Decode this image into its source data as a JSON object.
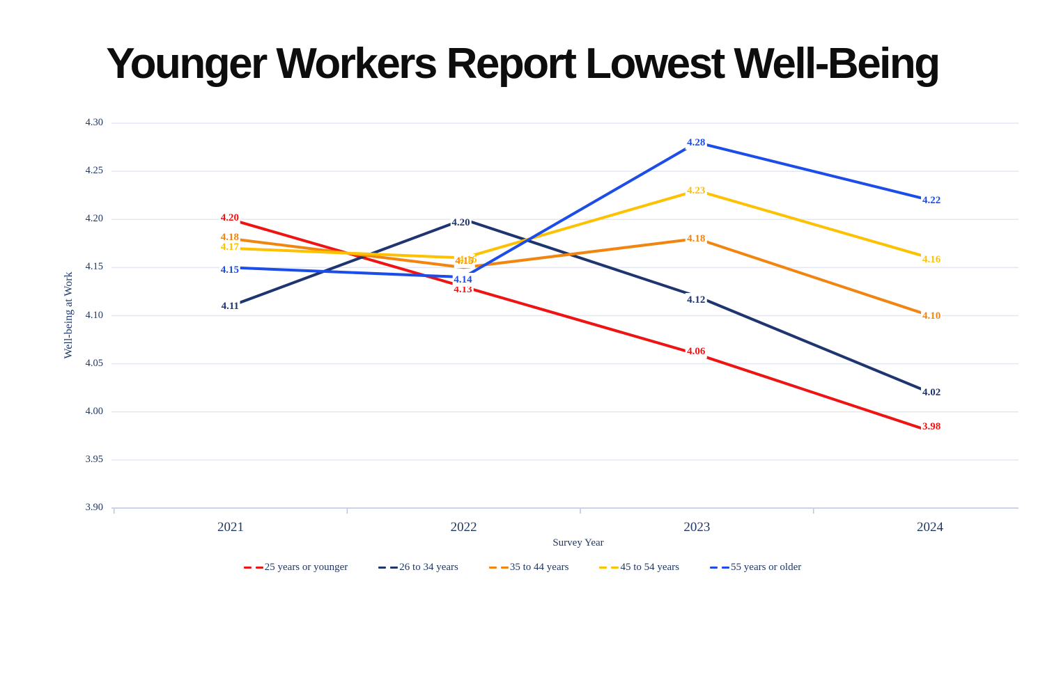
{
  "title": "Younger Workers Report Lowest Well-Being",
  "chart_data": {
    "type": "line",
    "x": [
      "2021",
      "2022",
      "2023",
      "2024"
    ],
    "xlabel": "Survey Year",
    "ylabel": "Well-being at Work",
    "ylim": [
      3.9,
      4.3
    ],
    "yticks": [
      "4.30",
      "4.25",
      "4.20",
      "4.15",
      "4.10",
      "4.05",
      "4.00",
      "3.95",
      "3.90"
    ],
    "grid": true,
    "data_labels": true,
    "legend_position": "bottom",
    "series": [
      {
        "name": "25 years or younger",
        "color": "#ee1414",
        "values": [
          4.2,
          4.13,
          4.06,
          3.98
        ]
      },
      {
        "name": "26 to 34 years",
        "color": "#1e3570",
        "values": [
          4.11,
          4.2,
          4.12,
          4.02
        ]
      },
      {
        "name": "35 to 44 years",
        "color": "#f1850f",
        "values": [
          4.18,
          4.15,
          4.18,
          4.1
        ]
      },
      {
        "name": "45 to 54 years",
        "color": "#fdc101",
        "values": [
          4.17,
          4.16,
          4.23,
          4.16
        ]
      },
      {
        "name": "55 years or older",
        "color": "#1d4de8",
        "values": [
          4.15,
          4.14,
          4.28,
          4.22
        ]
      }
    ],
    "colors": {
      "axis_text": "#1f3864",
      "gridline": "#e2e7f2",
      "axis_line": "#c8d4ea",
      "tick_mark": "#b8c6e4",
      "title_text": "#0d0d0d"
    }
  }
}
